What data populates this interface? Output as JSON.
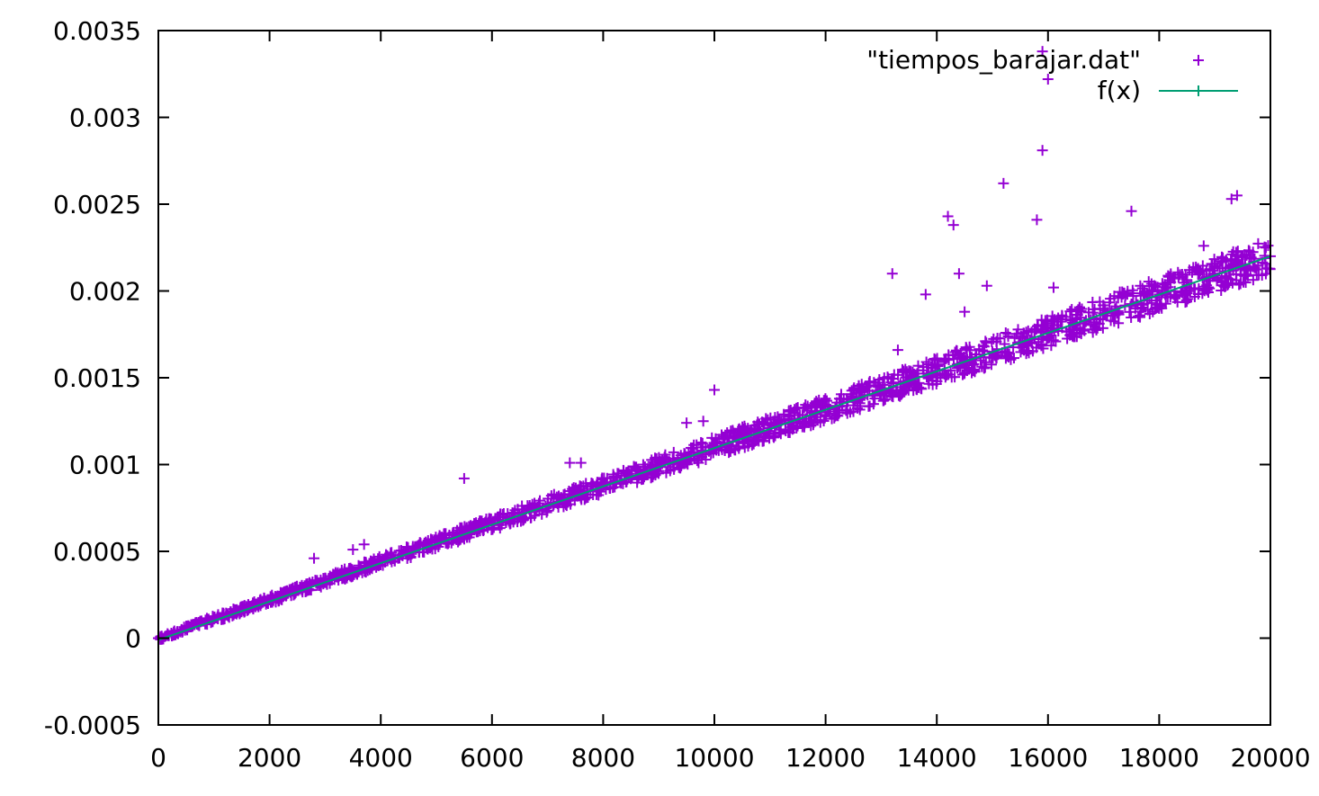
{
  "chart_data": {
    "type": "scatter",
    "title": "",
    "xlabel": "",
    "ylabel": "",
    "xlim": [
      0,
      20000
    ],
    "ylim": [
      -0.0005,
      0.0035
    ],
    "x_ticks": [
      "0",
      "2000",
      "4000",
      "6000",
      "8000",
      "10000",
      "12000",
      "14000",
      "16000",
      "18000",
      "20000"
    ],
    "y_ticks": [
      "-0.0005",
      "0",
      "0.0005",
      "0.001",
      "0.0015",
      "0.002",
      "0.0025",
      "0.003",
      "0.0035"
    ],
    "grid": false,
    "legend_position": "top-right",
    "series": [
      {
        "name": "\"tiempos_barajar.dat\"",
        "marker": "plus",
        "color": "#9400d3",
        "x": [
          0,
          500,
          1000,
          1500,
          2000,
          2500,
          3000,
          3500,
          4000,
          4500,
          5000,
          5500,
          6000,
          6500,
          7000,
          7500,
          8000,
          8500,
          9000,
          9500,
          10000,
          10500,
          11000,
          11500,
          12000,
          12500,
          13000,
          13500,
          14000,
          14500,
          15000,
          15500,
          16000,
          16500,
          17000,
          17500,
          18000,
          18500,
          19000,
          19500,
          20000
        ],
        "y": [
          0.0,
          5.5e-05,
          0.00011,
          0.000165,
          0.00022,
          0.000275,
          0.00033,
          0.000385,
          0.00044,
          0.000495,
          0.00055,
          0.000605,
          0.00066,
          0.000715,
          0.00077,
          0.000825,
          0.00088,
          0.000935,
          0.00099,
          0.001045,
          0.0011,
          0.001155,
          0.00121,
          0.001265,
          0.00132,
          0.001375,
          0.00143,
          0.001485,
          0.00154,
          0.001595,
          0.00165,
          0.001705,
          0.00176,
          0.001815,
          0.00187,
          0.001925,
          0.00198,
          0.002035,
          0.00209,
          0.002145,
          0.0022
        ],
        "outliers": {
          "x": [
            2800,
            3500,
            3700,
            5500,
            7400,
            7600,
            9500,
            9800,
            10000,
            13200,
            13300,
            13800,
            14200,
            14300,
            14400,
            14500,
            14900,
            15200,
            15800,
            15900,
            15900,
            16000,
            16100,
            17500,
            18800,
            19300,
            19400
          ],
          "y": [
            0.00046,
            0.00051,
            0.00054,
            0.00092,
            0.00101,
            0.00101,
            0.00124,
            0.00125,
            0.00143,
            0.0021,
            0.00166,
            0.00198,
            0.00243,
            0.00238,
            0.0021,
            0.00188,
            0.00203,
            0.00262,
            0.00241,
            0.00281,
            0.00338,
            0.00322,
            0.00202,
            0.00246,
            0.00226,
            0.00253,
            0.00255
          ]
        }
      },
      {
        "name": "f(x)",
        "type": "line",
        "color": "#009e73",
        "x": [
          0,
          20000
        ],
        "y": [
          -1e-05,
          0.0022
        ]
      }
    ]
  }
}
